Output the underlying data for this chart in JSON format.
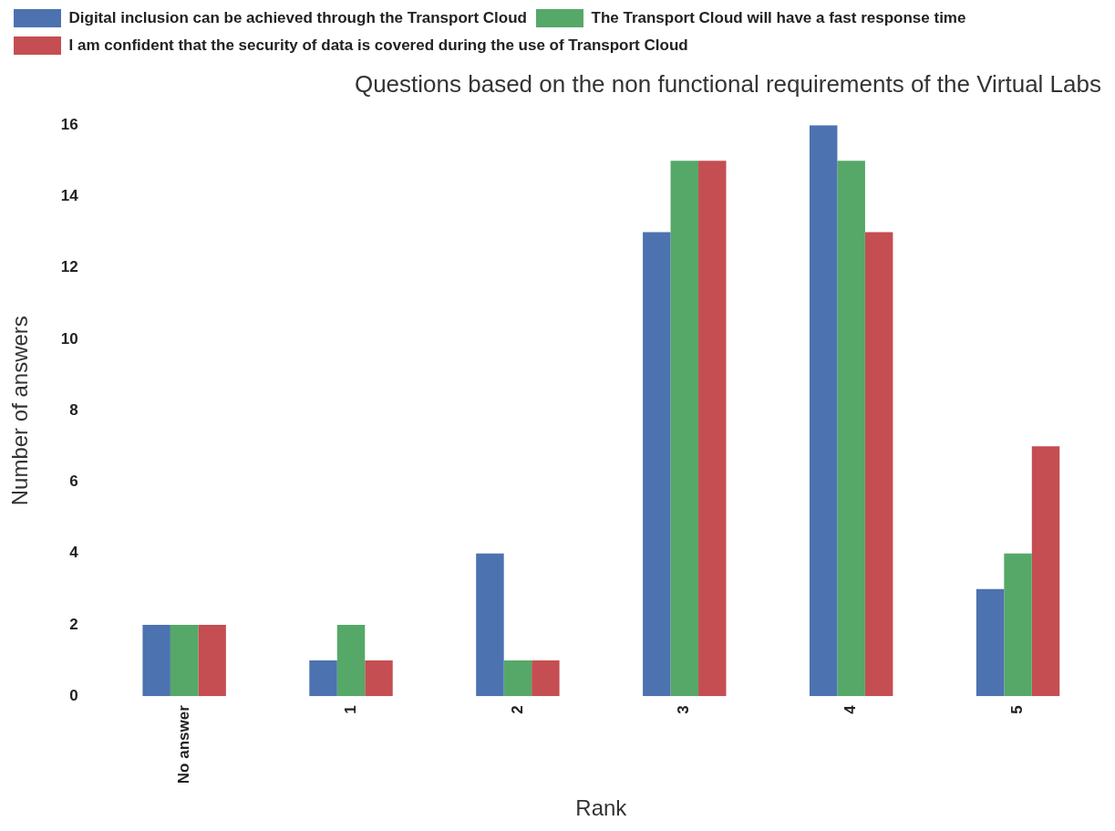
{
  "chart_data": {
    "type": "bar",
    "title": "Questions based on the non functional requirements of the Virtual Labs",
    "xlabel": "Rank",
    "ylabel": "Number of answers",
    "categories": [
      "No answer",
      "1",
      "2",
      "3",
      "4",
      "5"
    ],
    "series": [
      {
        "name": "Digital inclusion can be achieved through the Transport Cloud",
        "color": "#4c72b0",
        "values": [
          2,
          1,
          4,
          13,
          16,
          3
        ]
      },
      {
        "name": "The Transport Cloud will have a fast response time",
        "color": "#55a868",
        "values": [
          2,
          2,
          1,
          15,
          15,
          4
        ]
      },
      {
        "name": "I am confident that the security of data is covered during the use of Transport Cloud",
        "color": "#c44e52",
        "values": [
          2,
          1,
          1,
          15,
          13,
          7
        ]
      }
    ],
    "ylim": [
      0,
      16
    ],
    "yticks": [
      0,
      2,
      4,
      6,
      8,
      10,
      12,
      14,
      16
    ],
    "grid": false,
    "legend": "top"
  }
}
